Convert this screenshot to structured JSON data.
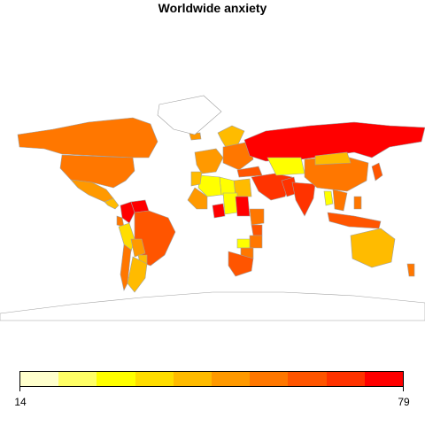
{
  "title": "Worldwide anxiety",
  "legend": {
    "min_label": "14",
    "max_label": "79",
    "colors": [
      "#FFFFCC",
      "#FFFF66",
      "#FFFF00",
      "#FFDD00",
      "#FFBB00",
      "#FF9900",
      "#FF7700",
      "#FF5500",
      "#FF3300",
      "#FF0000"
    ]
  },
  "colors": {
    "border": "#A0A0A0",
    "no_data": "#FFFFFF"
  },
  "chart_data": {
    "type": "heatmap",
    "title": "Worldwide anxiety",
    "scale": {
      "min": 14,
      "max": 79,
      "bins": 10
    },
    "regions": [
      {
        "name": "Canada",
        "bin": 6
      },
      {
        "name": "United States",
        "bin": 6
      },
      {
        "name": "Mexico",
        "bin": 5
      },
      {
        "name": "Central America",
        "bin": 4
      },
      {
        "name": "Colombia",
        "bin": 9
      },
      {
        "name": "Venezuela",
        "bin": 9
      },
      {
        "name": "Ecuador",
        "bin": 6
      },
      {
        "name": "Peru",
        "bin": 3
      },
      {
        "name": "Brazil",
        "bin": 7
      },
      {
        "name": "Bolivia",
        "bin": 5
      },
      {
        "name": "Paraguay",
        "bin": 4
      },
      {
        "name": "Chile",
        "bin": 6
      },
      {
        "name": "Argentina",
        "bin": 4
      },
      {
        "name": "Iceland",
        "bin": 5
      },
      {
        "name": "Scandinavia",
        "bin": 4
      },
      {
        "name": "Western Europe",
        "bin": 5
      },
      {
        "name": "Eastern Europe",
        "bin": 6
      },
      {
        "name": "Russia",
        "bin": 9
      },
      {
        "name": "Turkey",
        "bin": 7
      },
      {
        "name": "Middle East",
        "bin": 8
      },
      {
        "name": "Egypt",
        "bin": 4
      },
      {
        "name": "Libya",
        "bin": 2
      },
      {
        "name": "Algeria",
        "bin": 2
      },
      {
        "name": "Morocco",
        "bin": 4
      },
      {
        "name": "Mali",
        "bin": 5
      },
      {
        "name": "Nigeria",
        "bin": 9
      },
      {
        "name": "Chad",
        "bin": 2
      },
      {
        "name": "Sudan",
        "bin": 9
      },
      {
        "name": "Ethiopia",
        "bin": 6
      },
      {
        "name": "Kenya",
        "bin": 7
      },
      {
        "name": "Tanzania",
        "bin": 6
      },
      {
        "name": "Zambia",
        "bin": 2
      },
      {
        "name": "Zimbabwe",
        "bin": 6
      },
      {
        "name": "South Africa",
        "bin": 7
      },
      {
        "name": "Kazakhstan",
        "bin": 2
      },
      {
        "name": "Pakistan",
        "bin": 8
      },
      {
        "name": "India",
        "bin": 8
      },
      {
        "name": "China",
        "bin": 6
      },
      {
        "name": "Mongolia",
        "bin": 4
      },
      {
        "name": "Japan",
        "bin": 7
      },
      {
        "name": "Thailand",
        "bin": 2
      },
      {
        "name": "Southeast Asia",
        "bin": 6
      },
      {
        "name": "Indonesia",
        "bin": 7
      },
      {
        "name": "Philippines",
        "bin": 6
      },
      {
        "name": "Australia",
        "bin": 4
      },
      {
        "name": "New Zealand",
        "bin": 6
      },
      {
        "name": "Greenland",
        "bin": -1
      },
      {
        "name": "Antarctica",
        "bin": -1
      }
    ]
  }
}
